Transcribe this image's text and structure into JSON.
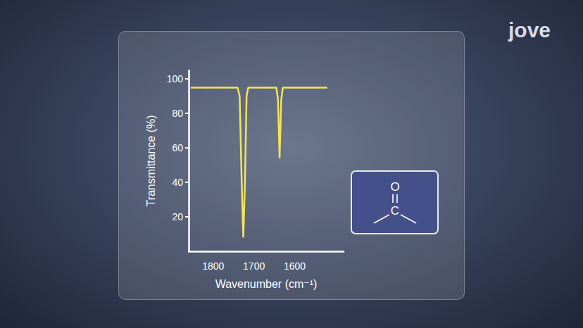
{
  "chart_data": {
    "type": "line",
    "x_label": "Wavenumber (cm⁻¹)",
    "y_label": "Transmittance (%)",
    "x": [
      1855,
      1740,
      1735,
      1730,
      1726,
      1722,
      1718,
      1714,
      1645,
      1641,
      1637,
      1633,
      1629,
      1520
    ],
    "values": [
      95,
      95,
      90,
      40,
      8,
      40,
      90,
      95,
      95,
      88,
      54,
      88,
      95,
      95
    ],
    "color": "#f2e45c",
    "xlim": [
      1860,
      1480
    ],
    "xticks": [
      1800,
      1700,
      1600
    ],
    "ylim": [
      0,
      105
    ],
    "yticks": [
      20,
      40,
      60,
      80,
      100
    ],
    "grid": false
  },
  "structure": {
    "atoms": [
      "O",
      "C"
    ]
  },
  "logo": "jove"
}
